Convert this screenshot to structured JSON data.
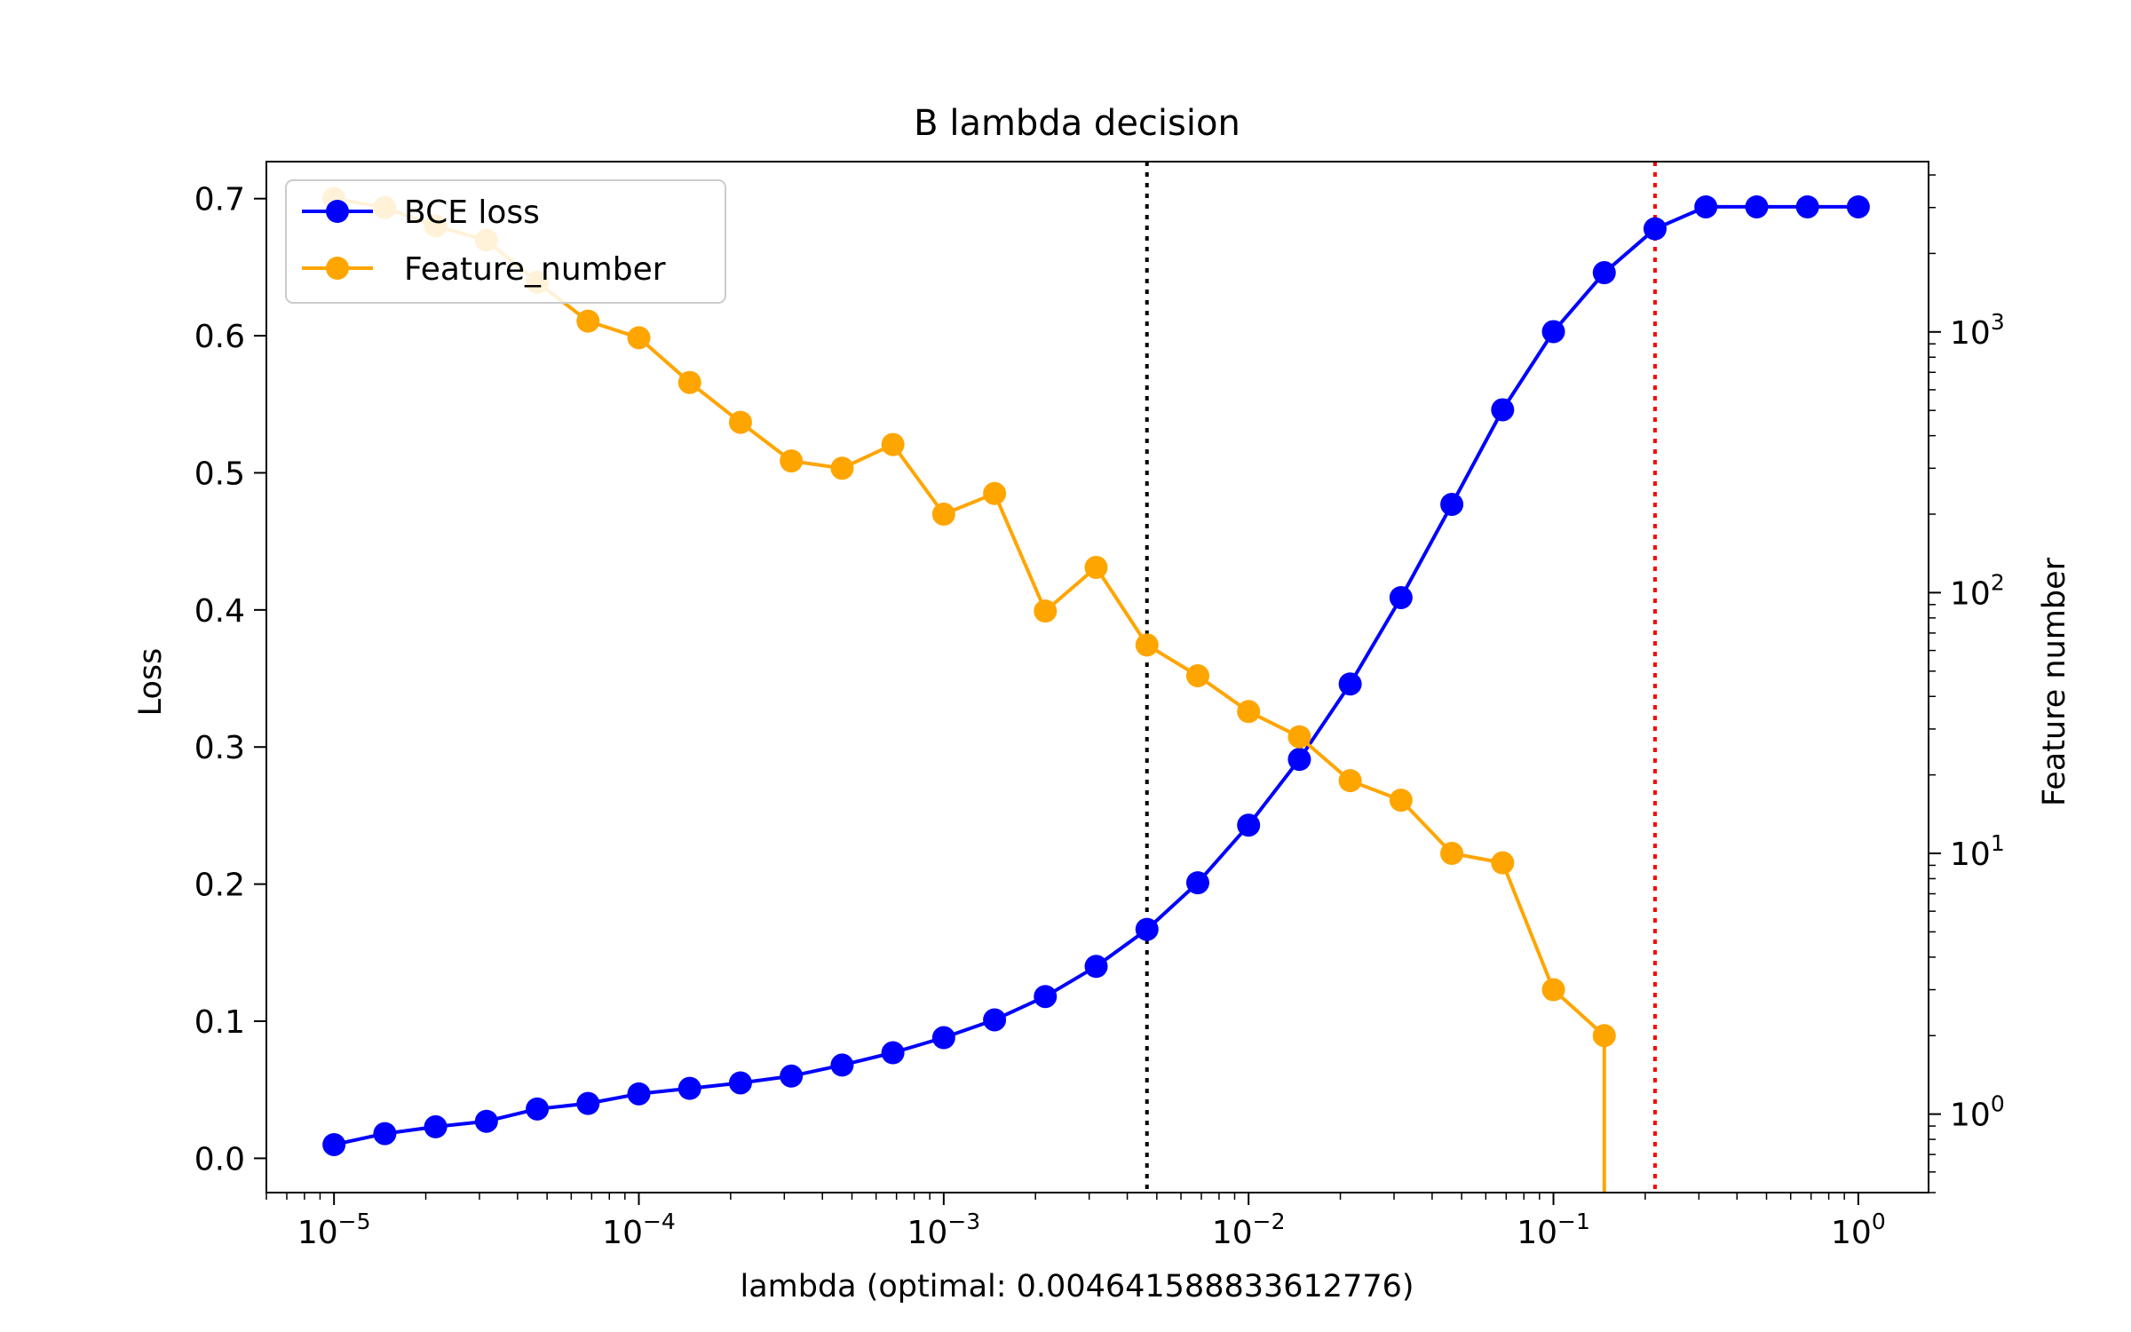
{
  "chart_data": {
    "type": "line",
    "title": "B lambda decision",
    "xlabel": "lambda (optimal: 0.004641588833612776)",
    "ylabel": "Loss",
    "y2label": "Feature number",
    "xscale": "log",
    "xlim": [
      6e-06,
      1.7
    ],
    "ylim": [
      -0.025,
      0.727
    ],
    "y2scale": "log",
    "y2lim": [
      0.5,
      4500
    ],
    "grid": false,
    "legend_position": "upper-left",
    "x_tick_labels": [
      {
        "base": "10",
        "exp": "−5",
        "value": 1e-05
      },
      {
        "base": "10",
        "exp": "−4",
        "value": 0.0001
      },
      {
        "base": "10",
        "exp": "−3",
        "value": 0.001
      },
      {
        "base": "10",
        "exp": "−2",
        "value": 0.01
      },
      {
        "base": "10",
        "exp": "−1",
        "value": 0.1
      },
      {
        "base": "10",
        "exp": "0",
        "value": 1
      }
    ],
    "y_tick_labels": [
      "0.0",
      "0.1",
      "0.2",
      "0.3",
      "0.4",
      "0.5",
      "0.6",
      "0.7"
    ],
    "y2_tick_labels": [
      {
        "base": "10",
        "exp": "0",
        "value": 1
      },
      {
        "base": "10",
        "exp": "1",
        "value": 10
      },
      {
        "base": "10",
        "exp": "2",
        "value": 100
      },
      {
        "base": "10",
        "exp": "3",
        "value": 1000
      }
    ],
    "x": [
      1e-05,
      1.468e-05,
      2.154e-05,
      3.162e-05,
      4.642e-05,
      6.813e-05,
      0.0001,
      0.0001468,
      0.0002154,
      0.0003162,
      0.0004642,
      0.0006813,
      0.001,
      0.001468,
      0.002154,
      0.003162,
      0.004642,
      0.006813,
      0.01,
      0.01468,
      0.02154,
      0.03162,
      0.04642,
      0.06813,
      0.1,
      0.1468,
      0.2154,
      0.3162,
      0.4642,
      0.6813,
      1.0
    ],
    "series": [
      {
        "name": "BCE loss",
        "axis": "left",
        "color": "#0000ff",
        "values": [
          0.01,
          0.018,
          0.023,
          0.027,
          0.036,
          0.04,
          0.047,
          0.051,
          0.055,
          0.06,
          0.068,
          0.077,
          0.088,
          0.101,
          0.118,
          0.14,
          0.167,
          0.201,
          0.243,
          0.291,
          0.346,
          0.409,
          0.477,
          0.546,
          0.603,
          0.646,
          0.678,
          0.694,
          0.694,
          0.694,
          0.694
        ]
      },
      {
        "name": "Feature_number",
        "axis": "right",
        "color": "#ffa500",
        "values": [
          3250,
          3000,
          2550,
          2250,
          1550,
          1100,
          950,
          640,
          450,
          320,
          300,
          370,
          200,
          240,
          85,
          125,
          63,
          48,
          35,
          28,
          19,
          16,
          10,
          9.2,
          3.0,
          2.0,
          null,
          null,
          null,
          null,
          null
        ],
        "drop_to_axis_after_index": 25
      }
    ],
    "vlines": [
      {
        "x": 0.004641588833612776,
        "color": "#000000",
        "style": "dotted"
      },
      {
        "x": 0.2154,
        "color": "#ff0000",
        "style": "dotted"
      }
    ]
  }
}
